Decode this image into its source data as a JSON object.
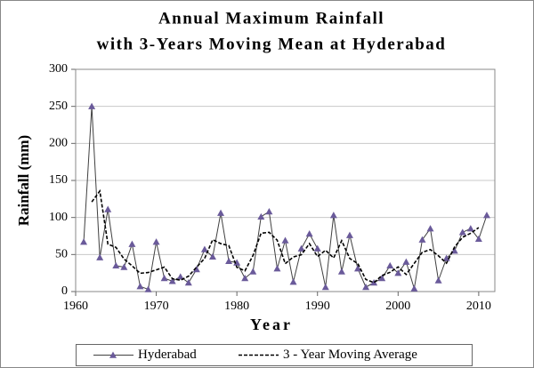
{
  "chart_data": {
    "type": "line",
    "title": "Annual  Maximum Rainfall",
    "subtitle": "with 3-Years Moving Mean  at Hyderabad",
    "x_label": "Year",
    "y_label": "Rainfall (mm)",
    "x": [
      1961,
      1962,
      1963,
      1964,
      1965,
      1966,
      1967,
      1968,
      1969,
      1970,
      1971,
      1972,
      1973,
      1974,
      1975,
      1976,
      1977,
      1978,
      1979,
      1980,
      1981,
      1982,
      1983,
      1984,
      1985,
      1986,
      1987,
      1988,
      1989,
      1990,
      1991,
      1992,
      1993,
      1994,
      1995,
      1996,
      1997,
      1998,
      1999,
      2000,
      2001,
      2002,
      2003,
      2004,
      2005,
      2006,
      2007,
      2008,
      2009,
      2010,
      2011
    ],
    "series": [
      {
        "name": "Hyderabad",
        "color": "#6a5a9a",
        "line_color": "#404040",
        "marker": "triangle",
        "values": [
          67,
          250,
          46,
          111,
          35,
          33,
          64,
          7,
          3,
          67,
          18,
          14,
          20,
          12,
          30,
          57,
          47,
          106,
          41,
          39,
          18,
          27,
          101,
          108,
          31,
          69,
          13,
          58,
          78,
          58,
          6,
          103,
          27,
          76,
          31,
          6,
          12,
          18,
          35,
          25,
          40,
          4,
          70,
          85,
          15,
          45,
          55,
          80,
          85,
          71,
          103
        ]
      },
      {
        "name": "3 - Year Moving Average",
        "color": "#000000",
        "dashed": true,
        "values": [
          null,
          121,
          135.7,
          64,
          59.7,
          44,
          34.7,
          24.7,
          25.7,
          29.3,
          33,
          17.3,
          15.3,
          20.7,
          33,
          44.7,
          70,
          64.7,
          62,
          32.7,
          28,
          48.7,
          78.7,
          80,
          69.3,
          37.7,
          46.7,
          49.7,
          64.7,
          47.3,
          55.7,
          45.3,
          68.7,
          44.7,
          37.7,
          16.3,
          12,
          21.7,
          26,
          33.3,
          23,
          38,
          53,
          56.7,
          48.3,
          38.3,
          60,
          73.3,
          78.7,
          86.3,
          null
        ]
      }
    ],
    "xlim": [
      1960,
      2012
    ],
    "xticks": [
      1960,
      1970,
      1980,
      1990,
      2000,
      2010
    ],
    "ylim": [
      0,
      300
    ],
    "yticks": [
      0,
      50,
      100,
      150,
      200,
      250,
      300
    ],
    "grid": true,
    "legend": "bottom"
  }
}
